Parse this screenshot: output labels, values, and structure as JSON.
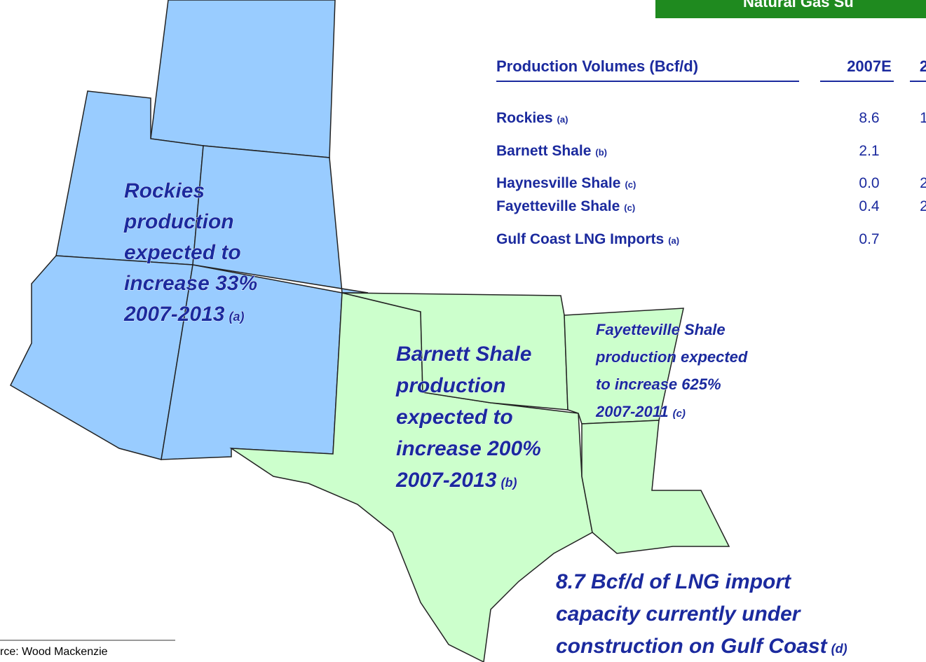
{
  "banner": "Natural Gas Su",
  "table": {
    "headers": [
      "Production Volumes (Bcf/d)",
      "2007E",
      "2"
    ],
    "rows": [
      {
        "label": "Rockies",
        "note": "(a)",
        "cells": [
          "8.6",
          "1"
        ]
      },
      {
        "label": "Barnett Shale",
        "note": "(b)",
        "cells": [
          "2.1",
          ""
        ]
      },
      {
        "label": "Haynesville Shale",
        "note": "(c)",
        "cells": [
          "0.0",
          "2"
        ]
      },
      {
        "label": "Fayetteville Shale",
        "note": "(c)",
        "cells": [
          "0.4",
          "2"
        ]
      },
      {
        "label": "Gulf Coast LNG Imports",
        "note": "(a)",
        "cells": [
          "0.7",
          ""
        ]
      }
    ]
  },
  "annotations": [
    {
      "lines": [
        "Rockies",
        "production",
        "expected to",
        "increase 33%",
        "2007-2013"
      ],
      "note": "(a)"
    },
    {
      "lines": [
        "Barnett Shale",
        "production",
        "expected to",
        "increase 200%",
        "2007-2013"
      ],
      "note": "(b)"
    },
    {
      "lines": [
        "Fayetteville Shale",
        "production expected",
        "to increase 625%",
        "2007-2011"
      ],
      "note": "(c)"
    },
    {
      "lines": [
        "8.7 Bcf/d of LNG import",
        "capacity currently under",
        "construction on Gulf Coast"
      ],
      "note": "(d)"
    }
  ],
  "source": "rce:  Wood Mackenzie"
}
